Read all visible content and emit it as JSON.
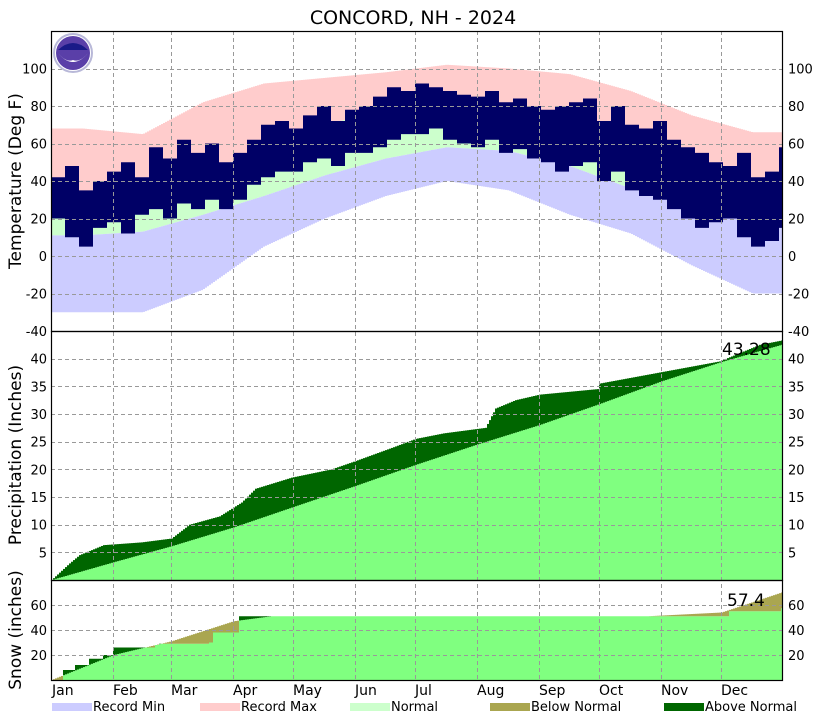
{
  "chart_data": [
    {
      "type": "bar",
      "title": "CONCORD, NH - 2024",
      "ylabel": "Temperature (Deg F)",
      "ylim": [
        -40,
        120
      ],
      "yticks": [
        -40,
        -20,
        0,
        20,
        40,
        60,
        80,
        100
      ],
      "grid": true,
      "months": [
        "Jan",
        "Feb",
        "Mar",
        "Apr",
        "May",
        "Jun",
        "Jul",
        "Aug",
        "Sep",
        "Oct",
        "Nov",
        "Dec"
      ],
      "normal_high_monthly": [
        31,
        35,
        44,
        57,
        70,
        78,
        83,
        81,
        73,
        60,
        48,
        36
      ],
      "normal_low_monthly": [
        11,
        13,
        22,
        32,
        43,
        52,
        58,
        56,
        48,
        36,
        27,
        18
      ],
      "record_max_monthly": [
        68,
        65,
        82,
        92,
        95,
        98,
        102,
        100,
        97,
        88,
        75,
        66
      ],
      "record_min_monthly": [
        -30,
        -30,
        -18,
        5,
        20,
        32,
        40,
        35,
        22,
        12,
        -5,
        -20
      ],
      "observed_high_weekly": [
        42,
        48,
        35,
        40,
        45,
        50,
        42,
        58,
        52,
        62,
        55,
        60,
        50,
        55,
        62,
        70,
        72,
        68,
        75,
        80,
        72,
        78,
        80,
        85,
        90,
        88,
        92,
        90,
        88,
        86,
        85,
        88,
        82,
        84,
        80,
        78,
        80,
        82,
        84,
        72,
        80,
        70,
        68,
        72,
        62,
        58,
        55,
        50,
        48,
        55,
        42,
        45,
        58
      ],
      "observed_low_weekly": [
        20,
        10,
        5,
        15,
        18,
        12,
        22,
        25,
        20,
        28,
        25,
        30,
        25,
        30,
        38,
        42,
        45,
        45,
        50,
        52,
        48,
        55,
        55,
        58,
        62,
        65,
        65,
        68,
        62,
        60,
        58,
        62,
        55,
        57,
        52,
        50,
        45,
        48,
        50,
        40,
        45,
        35,
        32,
        30,
        25,
        20,
        15,
        18,
        20,
        10,
        5,
        8,
        15
      ]
    },
    {
      "type": "area",
      "ylabel": "Precipitation (Inches)",
      "ylim": [
        0,
        45
      ],
      "yticks": [
        5,
        10,
        15,
        20,
        25,
        30,
        35,
        40
      ],
      "annotation": "43.28",
      "observed_cumulative": [
        [
          "2024-01-01",
          0
        ],
        [
          "2024-01-10",
          3
        ],
        [
          "2024-01-15",
          4.5
        ],
        [
          "2024-01-27",
          6.3
        ],
        [
          "2024-02-15",
          6.8
        ],
        [
          "2024-03-01",
          7.5
        ],
        [
          "2024-03-10",
          10
        ],
        [
          "2024-03-25",
          11.5
        ],
        [
          "2024-04-05",
          14
        ],
        [
          "2024-04-12",
          16.5
        ],
        [
          "2024-04-30",
          18.5
        ],
        [
          "2024-05-20",
          20
        ],
        [
          "2024-06-01",
          21.5
        ],
        [
          "2024-06-20",
          24
        ],
        [
          "2024-07-01",
          25.5
        ],
        [
          "2024-07-15",
          26.5
        ],
        [
          "2024-08-05",
          27.5
        ],
        [
          "2024-08-10",
          31
        ],
        [
          "2024-08-20",
          32.5
        ],
        [
          "2024-09-01",
          33.5
        ],
        [
          "2024-09-30",
          34.5
        ],
        [
          "2024-10-01",
          35.5
        ],
        [
          "2024-10-31",
          37.5
        ],
        [
          "2024-11-30",
          39.5
        ],
        [
          "2024-12-20",
          42.5
        ],
        [
          "2024-12-31",
          43.28
        ]
      ],
      "normal_cumulative": [
        [
          "2024-01-01",
          0
        ],
        [
          "2024-02-01",
          3.2
        ],
        [
          "2024-03-01",
          6.1
        ],
        [
          "2024-04-01",
          9.5
        ],
        [
          "2024-05-01",
          13.2
        ],
        [
          "2024-06-01",
          17
        ],
        [
          "2024-07-01",
          20.8
        ],
        [
          "2024-08-01",
          24.5
        ],
        [
          "2024-09-01",
          28
        ],
        [
          "2024-10-01",
          31.8
        ],
        [
          "2024-11-01",
          35.9
        ],
        [
          "2024-12-01",
          39.4
        ],
        [
          "2024-12-31",
          42.5
        ]
      ]
    },
    {
      "type": "area",
      "ylabel": "Snow (inches)",
      "ylim": [
        0,
        80
      ],
      "yticks": [
        20,
        40,
        60
      ],
      "annotation": "57.4",
      "observed_cumulative": [
        [
          "2024-01-01",
          0
        ],
        [
          "2024-01-07",
          8
        ],
        [
          "2024-01-13",
          12
        ],
        [
          "2024-01-20",
          17
        ],
        [
          "2024-01-27",
          20
        ],
        [
          "2024-02-01",
          26
        ],
        [
          "2024-02-22",
          28
        ],
        [
          "2024-02-24",
          29
        ],
        [
          "2024-03-20",
          30
        ],
        [
          "2024-03-22",
          38
        ],
        [
          "2024-04-04",
          51
        ],
        [
          "2024-12-05",
          55
        ],
        [
          "2024-12-31",
          57.4
        ]
      ],
      "normal_cumulative": [
        [
          "2024-01-01",
          0
        ],
        [
          "2024-02-01",
          20
        ],
        [
          "2024-03-01",
          31
        ],
        [
          "2024-04-01",
          47
        ],
        [
          "2024-04-20",
          51
        ],
        [
          "2024-10-25",
          51
        ],
        [
          "2024-12-01",
          54
        ],
        [
          "2024-12-31",
          70
        ]
      ]
    }
  ],
  "legend": {
    "items": [
      {
        "label": "Record Min",
        "color": "#ccccff"
      },
      {
        "label": "Record Max",
        "color": "#ffcccc"
      },
      {
        "label": "Normal",
        "color": "#ccffcc"
      },
      {
        "label": "Below Normal",
        "color": "#aaa650"
      },
      {
        "label": "Above Normal",
        "color": "#006600"
      }
    ]
  },
  "colors": {
    "observed": "#000066",
    "normal_fill": "#80ff80",
    "above": "#006600",
    "below": "#aaa650"
  },
  "logo": {
    "text": "NOAA"
  }
}
